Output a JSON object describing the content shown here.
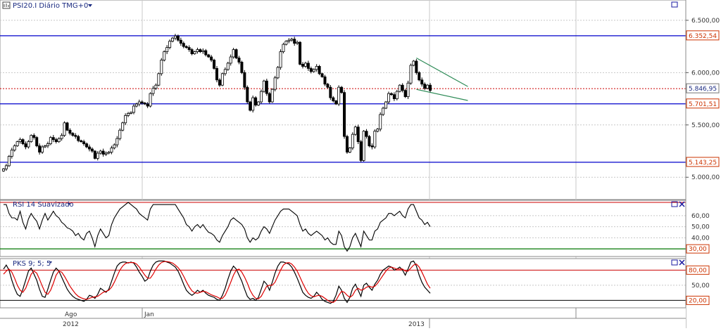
{
  "main_panel": {
    "symbol_icon": "chart-symbol-icon",
    "title": "PSI20.I Diário TMG+0",
    "dropdown_icon": "dropdown-arrow-icon",
    "window_icon": "restore-window-icon"
  },
  "rsi_panel": {
    "title": "RSI 14 Suavizado",
    "ticks": [
      "60,00",
      "50,00",
      "40,00"
    ],
    "level_labels": [
      "30,00"
    ]
  },
  "stoch_panel": {
    "title": "PKS 9; 5; 5",
    "ticks": [
      "50,00"
    ],
    "level_labels": [
      "80,00",
      "20,00"
    ]
  },
  "price_axis": {
    "ticks": [
      "6.500,00",
      "6.000,00",
      "5.500,00",
      "5.000,00"
    ],
    "level_labels": [
      "6.352,54",
      "5.846,95",
      "5.701,51",
      "5.143,25"
    ]
  },
  "time_axis": {
    "month_labels": [
      "Ago",
      "Jan"
    ],
    "year_labels": [
      "2012",
      "2013"
    ]
  },
  "colors": {
    "support_resistance": "#0000cc",
    "current_price": "#cc0000",
    "trendline": "#2e8b57",
    "rsi_line": "#000000",
    "rsi_30": "#007700",
    "stoch_k": "#000000",
    "stoch_d": "#dd0000",
    "axis_label_red": "#cc3300",
    "grid": "#c8c8c8"
  },
  "chart_data": [
    {
      "type": "candlestick",
      "title": "PSI20.I Diário TMG+0",
      "ylim": [
        4800,
        6600
      ],
      "ticks": [
        5000,
        5500,
        6000,
        6500
      ],
      "horizontal_levels": [
        6352.54,
        5846.95,
        5701.51,
        5143.25
      ],
      "current_price": 5846.95,
      "series_close": [
        5080,
        5110,
        5200,
        5260,
        5300,
        5340,
        5360,
        5320,
        5290,
        5340,
        5400,
        5380,
        5300,
        5240,
        5290,
        5300,
        5320,
        5380,
        5360,
        5340,
        5370,
        5400,
        5520,
        5450,
        5420,
        5400,
        5390,
        5350,
        5340,
        5320,
        5290,
        5270,
        5250,
        5180,
        5230,
        5250,
        5220,
        5230,
        5240,
        5280,
        5310,
        5370,
        5450,
        5520,
        5590,
        5610,
        5620,
        5680,
        5700,
        5720,
        5710,
        5700,
        5680,
        5800,
        5850,
        5880,
        5990,
        6120,
        6200,
        6240,
        6300,
        6330,
        6350,
        6310,
        6280,
        6250,
        6240,
        6220,
        6180,
        6200,
        6220,
        6200,
        6210,
        6170,
        6150,
        6120,
        6040,
        5930,
        5880,
        5990,
        6030,
        6090,
        6150,
        6220,
        6140,
        6100,
        6000,
        5860,
        5720,
        5640,
        5760,
        5690,
        5720,
        5820,
        5920,
        5800,
        5720,
        5840,
        5950,
        6050,
        6200,
        6270,
        6300,
        6310,
        6320,
        6280,
        6290,
        6080,
        6060,
        6090,
        6040,
        6010,
        6030,
        6060,
        5990,
        5960,
        5890,
        5860,
        5760,
        5730,
        5700,
        5860,
        5810,
        5390,
        5240,
        5280,
        5410,
        5480,
        5340,
        5160,
        5440,
        5390,
        5300,
        5290,
        5440,
        5460,
        5600,
        5660,
        5720,
        5800,
        5790,
        5750,
        5820,
        5880,
        5830,
        5770,
        5900,
        6070,
        6110,
        6000,
        5930,
        5890,
        5850,
        5880,
        5830
      ],
      "trendlines": [
        {
          "name": "upper",
          "from": [
            149,
            6140
          ],
          "to": [
            163,
            5840
          ]
        },
        {
          "name": "lower",
          "from": [
            149,
            5840
          ],
          "to": [
            163,
            5720
          ]
        }
      ]
    },
    {
      "type": "line",
      "title": "RSI 14 Suavizado",
      "ylim": [
        25,
        72
      ],
      "ticks": [
        40,
        50,
        60
      ],
      "levels": [
        30
      ],
      "values": [
        70,
        70,
        62,
        58,
        58,
        56,
        64,
        54,
        48,
        57,
        62,
        58,
        55,
        48,
        56,
        62,
        56,
        60,
        64,
        60,
        58,
        54,
        52,
        49,
        48,
        46,
        42,
        44,
        40,
        38,
        44,
        46,
        40,
        32,
        42,
        48,
        44,
        40,
        42,
        52,
        58,
        62,
        66,
        68,
        70,
        72,
        70,
        68,
        66,
        62,
        60,
        58,
        56,
        66,
        70,
        70,
        70,
        70,
        70,
        70,
        70,
        70,
        70,
        66,
        62,
        58,
        52,
        50,
        46,
        50,
        52,
        49,
        52,
        48,
        45,
        44,
        42,
        38,
        36,
        42,
        46,
        50,
        56,
        58,
        56,
        54,
        52,
        48,
        40,
        36,
        40,
        38,
        40,
        46,
        50,
        48,
        44,
        50,
        56,
        60,
        64,
        66,
        66,
        66,
        64,
        62,
        60,
        52,
        46,
        48,
        44,
        42,
        44,
        46,
        44,
        42,
        38,
        40,
        36,
        34,
        34,
        46,
        42,
        32,
        28,
        32,
        40,
        44,
        38,
        32,
        46,
        42,
        38,
        38,
        46,
        48,
        54,
        56,
        58,
        62,
        62,
        60,
        62,
        64,
        60,
        58,
        66,
        70,
        70,
        64,
        58,
        56,
        52,
        54,
        50
      ]
    },
    {
      "type": "line",
      "title": "PKS 9; 5; 5",
      "ylim": [
        8,
        100
      ],
      "ticks": [
        50
      ],
      "levels": [
        80,
        20
      ],
      "series": [
        {
          "name": "%K",
          "values": [
            82,
            90,
            80,
            60,
            44,
            32,
            28,
            42,
            60,
            78,
            84,
            72,
            60,
            42,
            28,
            26,
            42,
            60,
            76,
            84,
            78,
            66,
            54,
            42,
            34,
            28,
            24,
            22,
            20,
            18,
            22,
            30,
            28,
            24,
            32,
            44,
            40,
            36,
            42,
            58,
            74,
            88,
            94,
            96,
            96,
            94,
            96,
            94,
            86,
            76,
            68,
            58,
            62,
            78,
            90,
            96,
            98,
            98,
            98,
            96,
            94,
            90,
            86,
            78,
            66,
            52,
            40,
            34,
            30,
            34,
            40,
            36,
            40,
            34,
            30,
            28,
            26,
            22,
            20,
            30,
            44,
            62,
            78,
            88,
            82,
            70,
            58,
            42,
            28,
            22,
            24,
            20,
            26,
            42,
            58,
            52,
            40,
            56,
            74,
            88,
            96,
            96,
            94,
            92,
            86,
            76,
            64,
            50,
            36,
            30,
            26,
            24,
            28,
            36,
            30,
            22,
            18,
            16,
            14,
            18,
            30,
            48,
            40,
            24,
            16,
            26,
            44,
            52,
            40,
            28,
            50,
            54,
            46,
            40,
            52,
            60,
            72,
            80,
            84,
            88,
            86,
            80,
            82,
            86,
            80,
            70,
            82,
            96,
            98,
            88,
            70,
            56,
            46,
            40,
            34
          ]
        },
        {
          "name": "%D",
          "values": [
            72,
            78,
            82,
            76,
            64,
            50,
            40,
            36,
            44,
            58,
            72,
            78,
            74,
            62,
            48,
            36,
            32,
            40,
            54,
            70,
            78,
            76,
            68,
            58,
            48,
            40,
            33,
            28,
            25,
            23,
            22,
            24,
            26,
            27,
            28,
            32,
            36,
            38,
            40,
            46,
            56,
            68,
            80,
            88,
            93,
            95,
            95,
            95,
            92,
            86,
            78,
            70,
            64,
            64,
            72,
            82,
            90,
            95,
            97,
            97,
            96,
            94,
            90,
            85,
            78,
            68,
            57,
            47,
            39,
            35,
            34,
            36,
            38,
            37,
            34,
            31,
            29,
            27,
            24,
            24,
            30,
            42,
            56,
            70,
            80,
            82,
            76,
            66,
            54,
            40,
            30,
            24,
            23,
            28,
            38,
            48,
            50,
            50,
            56,
            68,
            80,
            90,
            94,
            95,
            92,
            86,
            78,
            66,
            54,
            43,
            34,
            29,
            27,
            29,
            30,
            28,
            24,
            20,
            17,
            16,
            20,
            30,
            38,
            36,
            30,
            26,
            30,
            40,
            44,
            40,
            42,
            46,
            48,
            46,
            48,
            54,
            62,
            70,
            78,
            84,
            86,
            84,
            82,
            82,
            82,
            78,
            78,
            84,
            90,
            92,
            86,
            76,
            64,
            52,
            44
          ]
        }
      ]
    }
  ]
}
